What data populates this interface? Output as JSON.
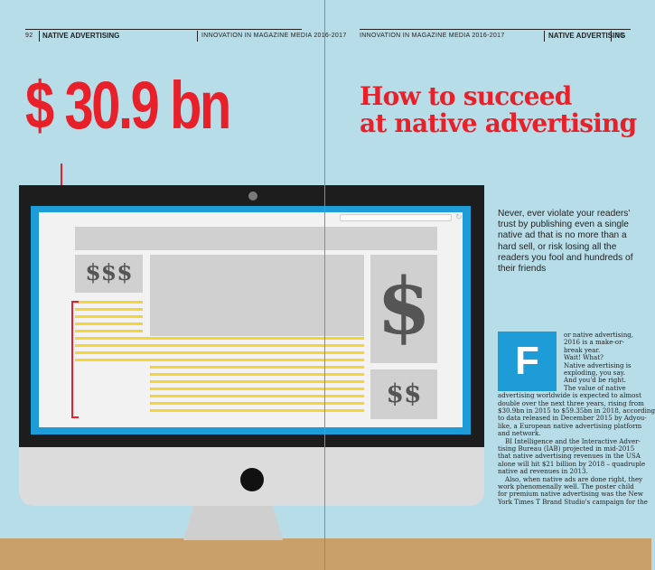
{
  "left_page": {
    "page_number": "92",
    "section": "NATIVE ADVERTISING",
    "publication": "INNOVATION IN MAGAZINE MEDIA 2016-2017",
    "big_figure": "$ 30.9 bn"
  },
  "right_page": {
    "publication": "INNOVATION IN MAGAZINE MEDIA 2016-2017",
    "section": "NATIVE ADVERTISING",
    "page_number": "93",
    "headline_line1": "How to succeed",
    "headline_line2": "at native advertising",
    "standfirst": "Never, ever violate your readers' trust by publishing even a single native ad that is no more than a hard sell, or risk losing all the readers you fool and hundreds of their friends",
    "dropcap": "F",
    "body_lines": [
      "or native advertising,",
      "2016 is a make-or-",
      "break year.",
      "Wait! What?",
      "Native advertising is",
      "exploding, you say.",
      "And you'd be right.",
      "The value of native",
      "advertising worldwide is expected to almost",
      "double over the next three years, rising from",
      "$30.9bn in 2015 to $59.35bn in 2018, according",
      "to data released in December 2015 by Adyou-",
      "like, a European native advertising platform",
      "and network.",
      "BI Intelligence and the Interactive Adver-",
      "tising Bureau (IAB) projected in mid-2015",
      "that native advertising revenues in the USA",
      "alone will hit $21 billion by 2018 – quadruple",
      "native ad revenues in 2013.",
      "Also, when native ads are done right, they",
      "work phenomenally well. The poster child",
      "for premium native advertising was the New",
      "York Times T Brand Studio's campaign for the"
    ]
  },
  "illustration": {
    "small_dollars": "$$$",
    "big_dollar": "$",
    "double_dollar": "$$",
    "colors": {
      "background": "#b7dde8",
      "accent_red": "#e8202a",
      "screen_blue": "#1d9cd8",
      "stripe_yellow": "#f2d33a",
      "floor": "#c9a06a"
    }
  }
}
